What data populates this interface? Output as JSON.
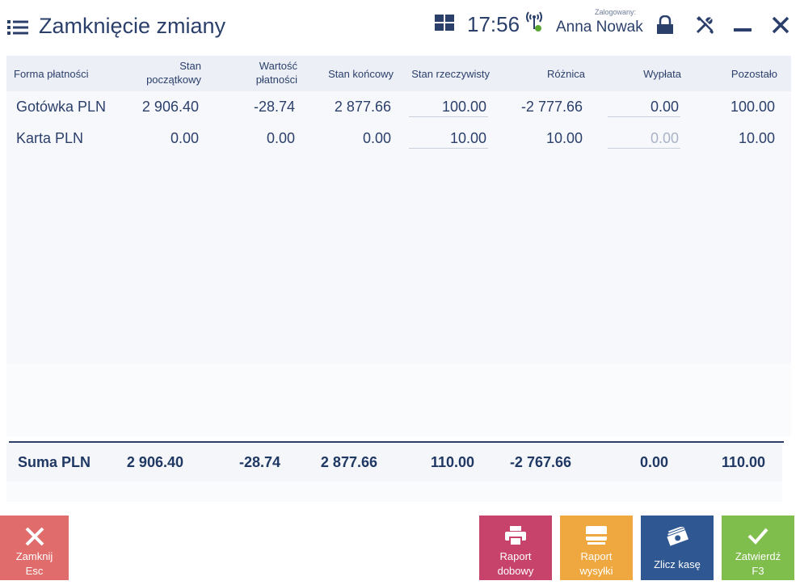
{
  "header": {
    "title": "Zamknięcie zmiany",
    "time": "17:56",
    "logged_label": "Zalogowany:",
    "user_name": "Anna Nowak"
  },
  "table": {
    "columns": [
      "Forma płatności",
      "Stan początkowy",
      "Wartość płatności",
      "Stan końcowy",
      "Stan rzeczywisty",
      "Różnica",
      "Wypłata",
      "Pozostało"
    ],
    "column_lines": {
      "stan_poczatkowy": [
        "Stan",
        "początkowy"
      ],
      "wartosc_platnosci": [
        "Wartość",
        "płatności"
      ]
    },
    "rows": [
      {
        "form": "Gotówka PLN",
        "initial": "2 906.40",
        "payment": "-28.74",
        "final": "2 877.66",
        "actual": "100.00",
        "difference": "-2 777.66",
        "withdrawal": "0.00",
        "remaining": "100.00"
      },
      {
        "form": "Karta PLN",
        "initial": "0.00",
        "payment": "0.00",
        "final": "0.00",
        "actual": "10.00",
        "difference": "10.00",
        "withdrawal": "0.00",
        "remaining": "10.00"
      }
    ]
  },
  "summary": {
    "label": "Suma PLN",
    "initial": "2 906.40",
    "payment": "-28.74",
    "final": "2 877.66",
    "actual": "110.00",
    "difference": "-2 767.66",
    "withdrawal": "0.00",
    "remaining": "110.00"
  },
  "buttons": {
    "close": [
      "Zamknij",
      "Esc"
    ],
    "daily_report": [
      "Raport",
      "dobowy"
    ],
    "shipping_report": [
      "Raport",
      "wysyłki"
    ],
    "count_cash": "Zlicz kasę",
    "confirm": [
      "Zatwierdź",
      "F3"
    ]
  },
  "colors": {
    "accent": "#2b3f6b",
    "close_button": "#e06c6c",
    "daily_report_button": "#c7436b",
    "shipping_report_button": "#eea83f",
    "count_cash_button": "#2f5791",
    "confirm_button": "#7fbd4c",
    "status_online": "#5aa832"
  },
  "icons": {
    "menu": "hamburger-icon",
    "view": "grid-icon",
    "connection": "signal-icon",
    "lock": "lock-icon",
    "settings": "tools-icon",
    "minimize": "minimize-icon",
    "close": "close-icon"
  }
}
